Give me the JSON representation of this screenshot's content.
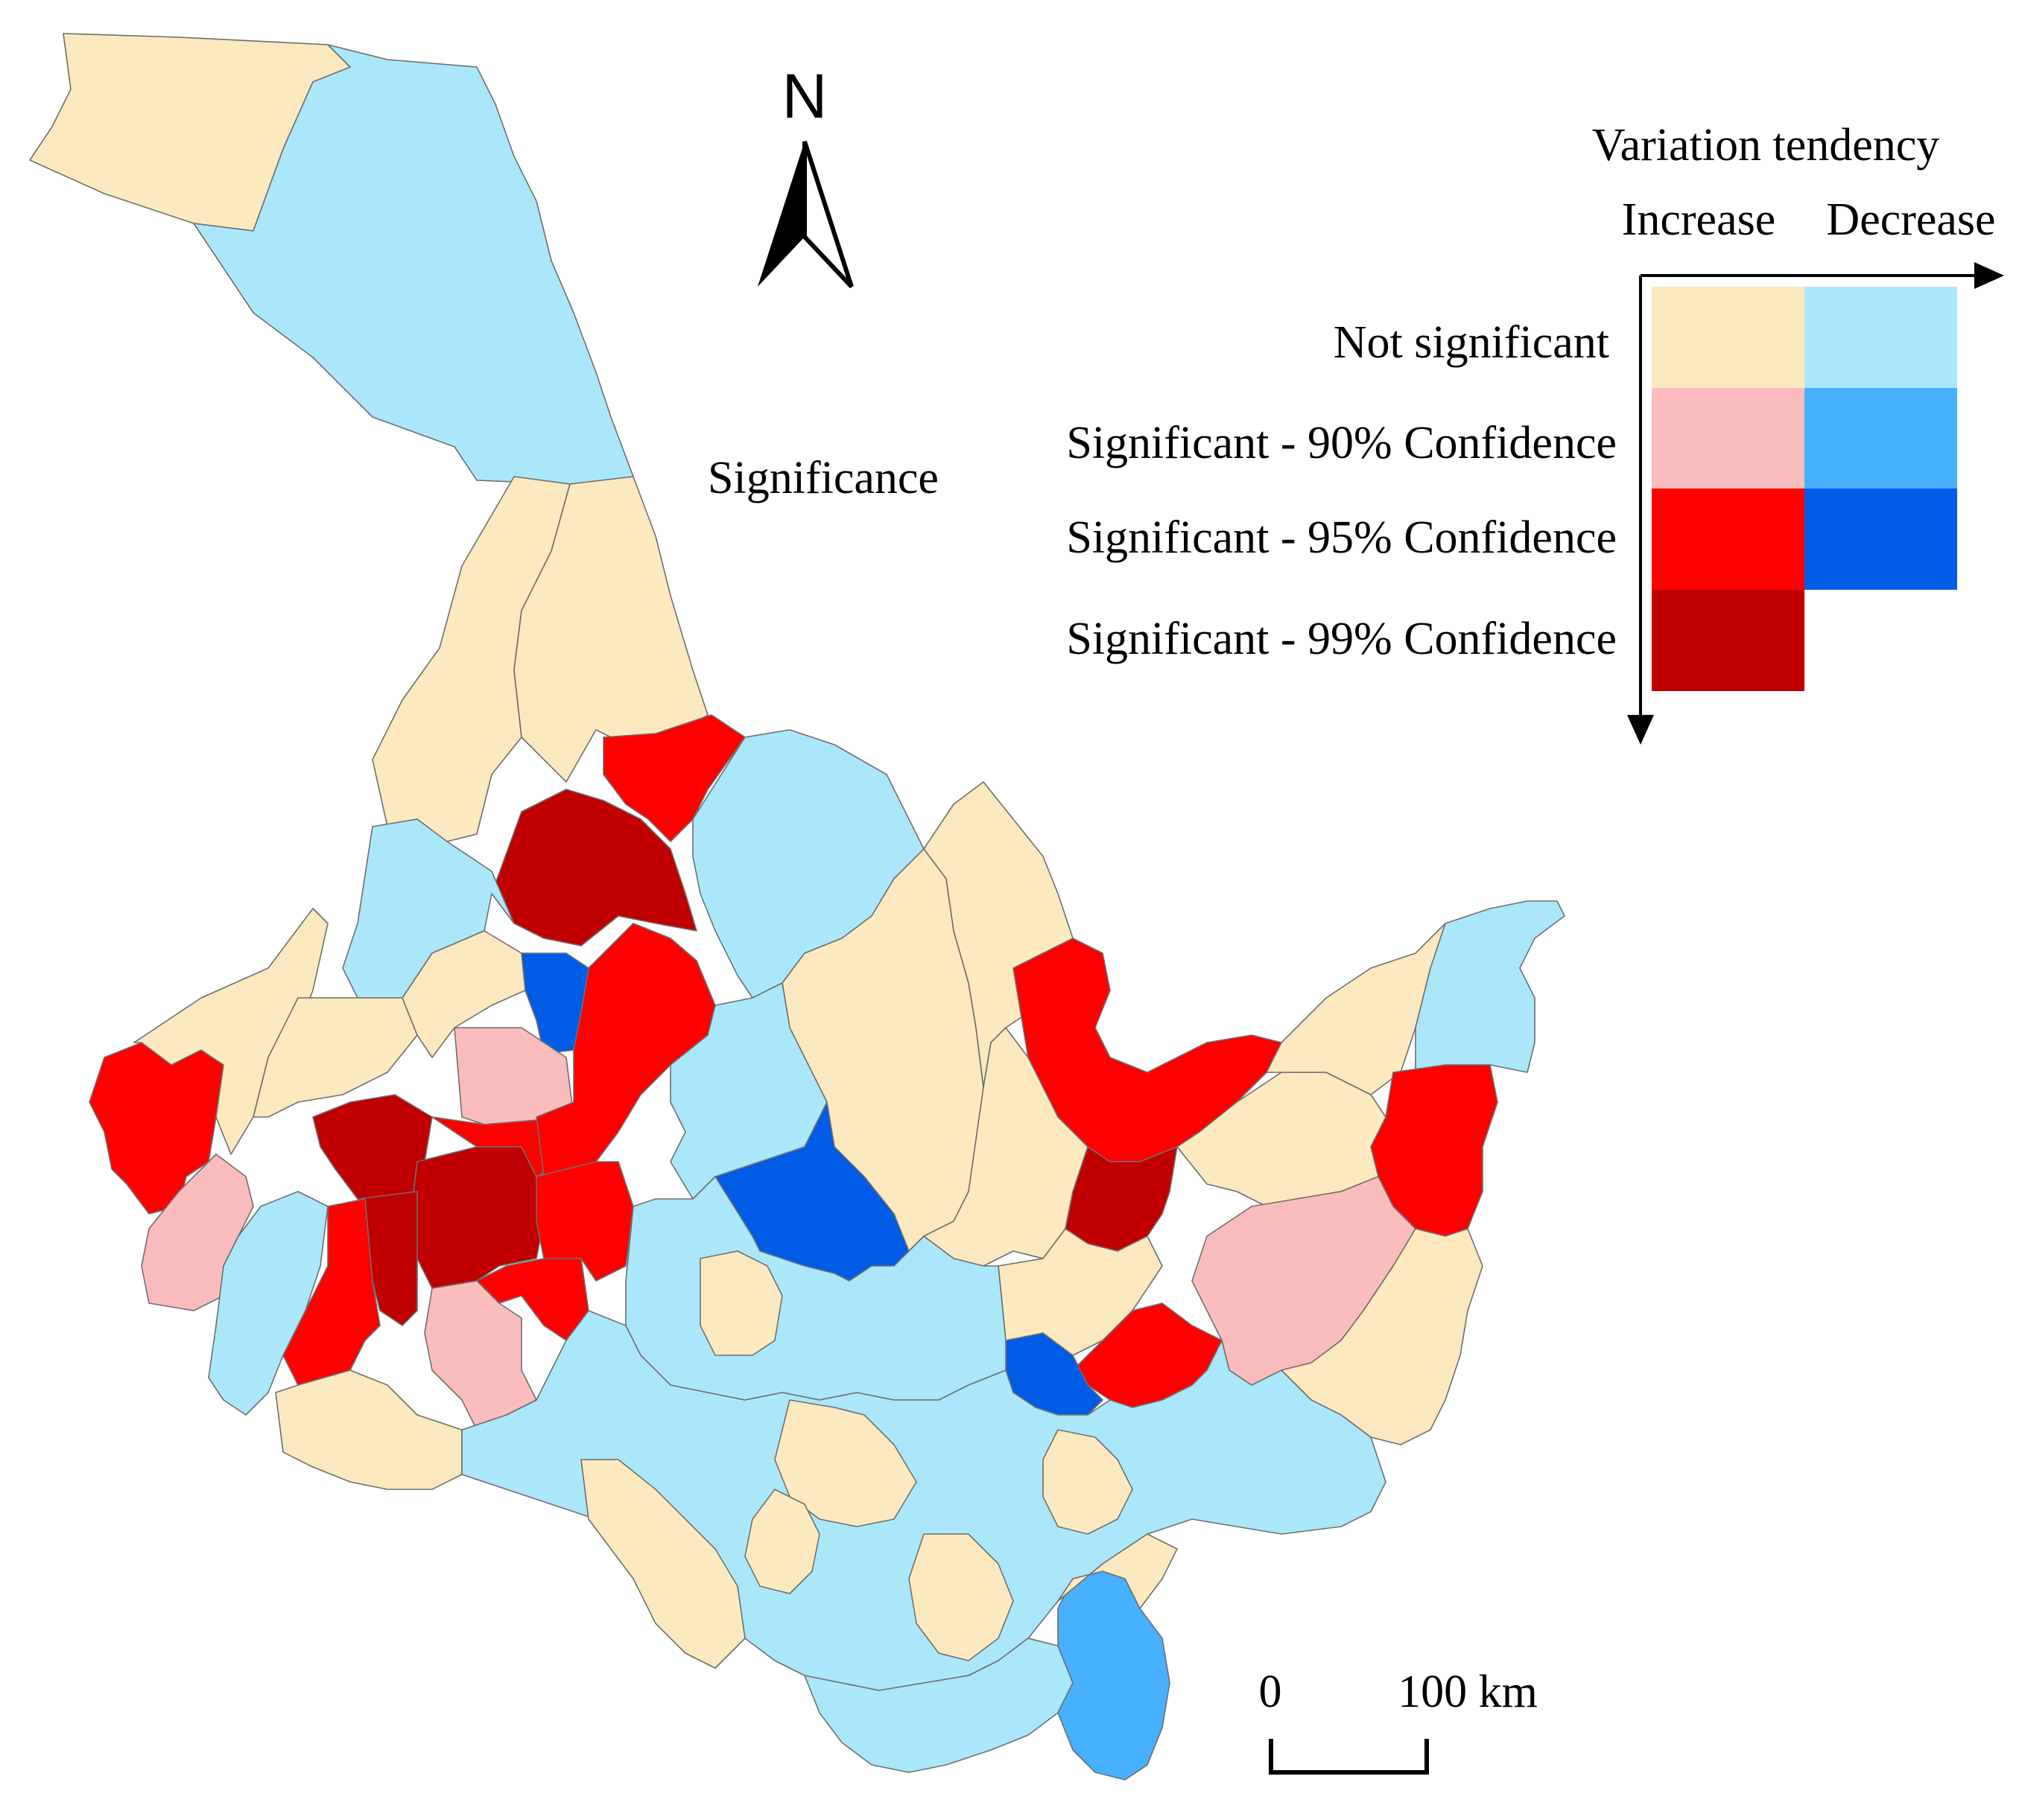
{
  "colors": {
    "increase_not_significant": "#fde9bf",
    "increase_90": "#fbbcbe",
    "increase_95": "#ff0000",
    "increase_99": "#c00000",
    "decrease_not_significant": "#abe7fb",
    "decrease_90": "#47b0ff",
    "decrease_95": "#005ce6",
    "border": "#6e6e6e"
  },
  "north_arrow": {
    "label": "N",
    "icon": "north-arrow-icon"
  },
  "legend": {
    "title": "Variation tendency",
    "columns": [
      "Increase",
      "Decrease"
    ],
    "axis_label": "Significance",
    "rows": [
      "Not significant",
      "Significant - 90% Confidence",
      "Significant - 95% Confidence",
      "Significant - 99% Confidence"
    ]
  },
  "scale_bar": {
    "start_label": "0",
    "end_label": "100 km"
  }
}
